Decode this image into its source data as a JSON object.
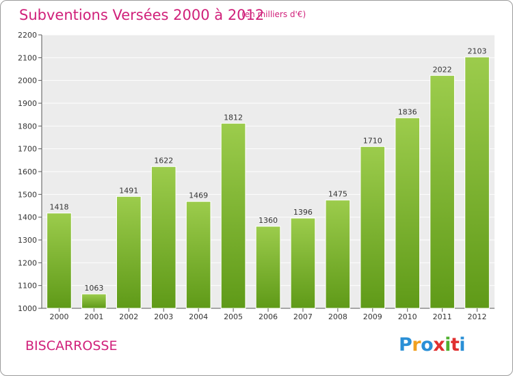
{
  "title": "Subventions Versées 2000 à 2012",
  "subtitle": "(en milliers d'€)",
  "city": "BISCARROSSE",
  "logo": {
    "letters": [
      "P",
      "r",
      "o",
      "x",
      "i",
      "t",
      "i"
    ],
    "colors": [
      "#2a8fd6",
      "#f0a020",
      "#2a8fd6",
      "#e03030",
      "#50b030",
      "#e03030",
      "#2a8fd6"
    ]
  },
  "colors": {
    "bar_top": "#9ccc4c",
    "bar_bottom": "#5f9a18",
    "plot_bg": "#ececec",
    "grid": "#ffffff",
    "accent": "#d0207a"
  },
  "chart_data": {
    "type": "bar",
    "categories": [
      "2000",
      "2001",
      "2002",
      "2003",
      "2004",
      "2005",
      "2006",
      "2007",
      "2008",
      "2009",
      "2010",
      "2011",
      "2012"
    ],
    "values": [
      1418,
      1063,
      1491,
      1622,
      1469,
      1812,
      1360,
      1396,
      1475,
      1710,
      1836,
      2022,
      2103
    ],
    "ylim": [
      1000,
      2200
    ],
    "yticks": [
      "1000",
      "1100",
      "1200",
      "1300",
      "1400",
      "1500",
      "1600",
      "1700",
      "1800",
      "1900",
      "2000",
      "2100",
      "2200"
    ],
    "grid": true,
    "xlabel": "",
    "ylabel": ""
  }
}
